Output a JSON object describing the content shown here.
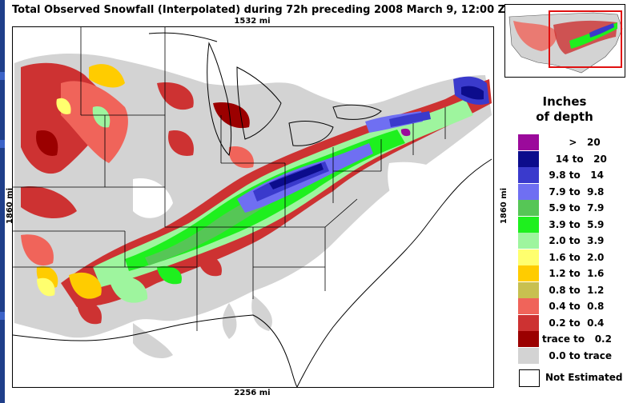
{
  "title": "Total Observed Snowfall (Interpolated) during 72h preceding 2008 March 9, 12:00 Z",
  "scale": {
    "top": "1532 mi",
    "bottom": "2256 mi",
    "left": "1860 mi",
    "right": "1860 mi"
  },
  "legend": {
    "title_line1": "Inches",
    "title_line2": "of depth",
    "items": [
      {
        "label": "        >   20",
        "color": "#9b0a9b"
      },
      {
        "label": "    14 to   20",
        "color": "#0c0c8c"
      },
      {
        "label": "  9.8 to   14",
        "color": "#3a3acc"
      },
      {
        "label": "  7.9 to  9.8",
        "color": "#6f6ff2"
      },
      {
        "label": "  5.9 to  7.9",
        "color": "#56c656"
      },
      {
        "label": "  3.9 to  5.9",
        "color": "#1ef01e"
      },
      {
        "label": "  2.0 to  3.9",
        "color": "#9ef59e"
      },
      {
        "label": "  1.6 to  2.0",
        "color": "#ffff6e"
      },
      {
        "label": "  1.2 to  1.6",
        "color": "#ffcc00"
      },
      {
        "label": "  0.8 to  1.2",
        "color": "#c8c050"
      },
      {
        "label": "  0.4 to  0.8",
        "color": "#f0645a"
      },
      {
        "label": "  0.2 to  0.4",
        "color": "#cd3232"
      },
      {
        "label": "trace to   0.2",
        "color": "#9b0000"
      },
      {
        "label": "  0.0 to trace",
        "color": "#d3d3d3"
      }
    ],
    "not_estimated": "Not Estimated"
  },
  "colors": {
    "grey": "#d3d3d3",
    "trace": "#9b0000",
    "red": "#cd3232",
    "salmon": "#f0645a",
    "yellow": "#ffcc00",
    "lightgreen": "#9ef59e",
    "green": "#1ef01e",
    "midgreen": "#56c656",
    "lightblue": "#6f6ff2",
    "blue": "#3a3acc",
    "darkblue": "#0c0c8c",
    "purple": "#9b0a9b",
    "inset_box": "#e01010"
  }
}
